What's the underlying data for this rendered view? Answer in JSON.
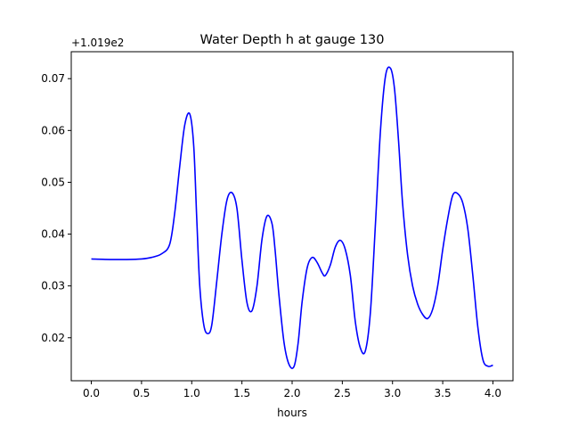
{
  "chart_data": {
    "type": "line",
    "title": "Water Depth h at gauge 130",
    "xlabel": "hours",
    "ylabel": "",
    "offset_label": "+1.019e2",
    "xlim": [
      -0.2,
      4.2
    ],
    "ylim": [
      0.0117,
      0.0752
    ],
    "xticks": [
      0.0,
      0.5,
      1.0,
      1.5,
      2.0,
      2.5,
      3.0,
      3.5,
      4.0
    ],
    "xtick_labels": [
      "0.0",
      "0.5",
      "1.0",
      "1.5",
      "2.0",
      "2.5",
      "3.0",
      "3.5",
      "4.0"
    ],
    "yticks": [
      0.02,
      0.03,
      0.04,
      0.05,
      0.06,
      0.07
    ],
    "ytick_labels": [
      "0.02",
      "0.03",
      "0.04",
      "0.05",
      "0.06",
      "0.07"
    ],
    "grid": false,
    "series": [
      {
        "color": "#0000ff",
        "x": [
          0.0,
          0.2,
          0.35,
          0.5,
          0.6,
          0.7,
          0.78,
          0.83,
          0.88,
          0.93,
          0.98,
          1.02,
          1.05,
          1.08,
          1.12,
          1.16,
          1.2,
          1.25,
          1.3,
          1.35,
          1.4,
          1.45,
          1.5,
          1.55,
          1.6,
          1.65,
          1.7,
          1.75,
          1.8,
          1.83,
          1.87,
          1.92,
          1.97,
          2.02,
          2.06,
          2.1,
          2.15,
          2.2,
          2.25,
          2.3,
          2.33,
          2.38,
          2.43,
          2.48,
          2.53,
          2.58,
          2.63,
          2.68,
          2.73,
          2.78,
          2.83,
          2.88,
          2.93,
          2.98,
          3.02,
          3.06,
          3.1,
          3.15,
          3.2,
          3.25,
          3.3,
          3.35,
          3.4,
          3.45,
          3.5,
          3.55,
          3.6,
          3.65,
          3.7,
          3.75,
          3.8,
          3.85,
          3.9,
          3.95,
          4.0
        ],
        "y": [
          0.0352,
          0.0351,
          0.0351,
          0.0352,
          0.0355,
          0.0362,
          0.038,
          0.044,
          0.053,
          0.061,
          0.0632,
          0.057,
          0.043,
          0.03,
          0.0225,
          0.0208,
          0.0225,
          0.031,
          0.04,
          0.0465,
          0.048,
          0.045,
          0.035,
          0.0268,
          0.0252,
          0.03,
          0.039,
          0.0435,
          0.042,
          0.037,
          0.028,
          0.019,
          0.0148,
          0.0145,
          0.019,
          0.027,
          0.0335,
          0.0355,
          0.0345,
          0.0325,
          0.032,
          0.034,
          0.0375,
          0.0388,
          0.037,
          0.032,
          0.023,
          0.018,
          0.0175,
          0.025,
          0.042,
          0.06,
          0.0705,
          0.072,
          0.068,
          0.058,
          0.046,
          0.036,
          0.03,
          0.0265,
          0.0245,
          0.0237,
          0.0255,
          0.03,
          0.037,
          0.043,
          0.0475,
          0.0478,
          0.046,
          0.041,
          0.032,
          0.022,
          0.0158,
          0.0145,
          0.0147
        ]
      }
    ]
  }
}
